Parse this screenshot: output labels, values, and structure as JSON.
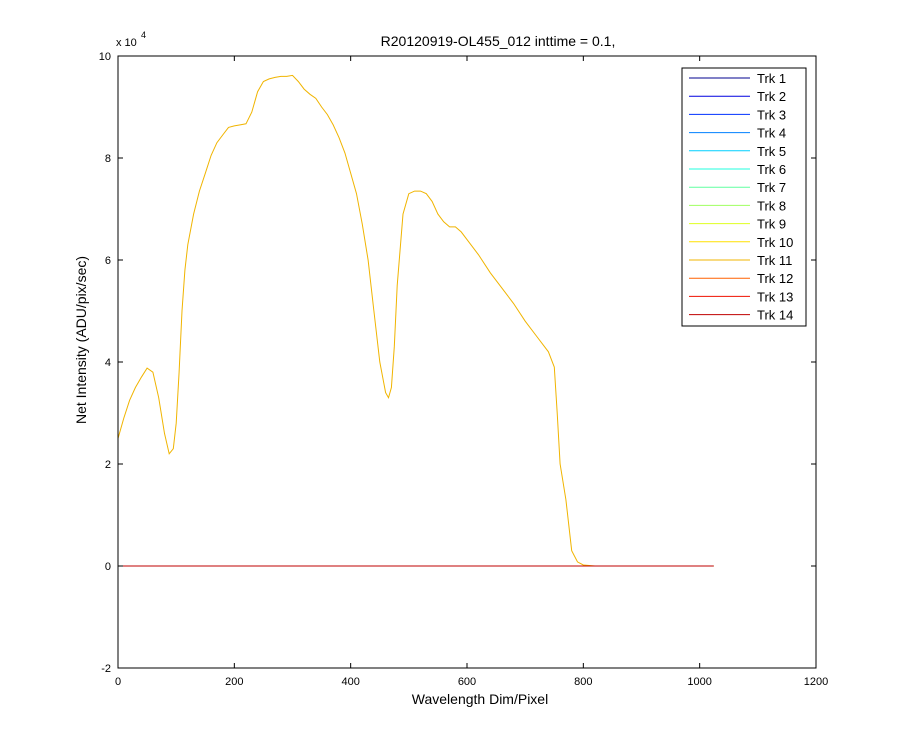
{
  "chart_data": {
    "type": "line",
    "title": "R20120919-OL455_012 inttime = 0.1,",
    "xlabel": "Wavelength Dim/Pixel",
    "ylabel": "Net Intensity (ADU/pix/sec)",
    "xlim": [
      0,
      1200
    ],
    "ylim": [
      -20000,
      100000
    ],
    "x_ticks": [
      0,
      200,
      400,
      600,
      800,
      1000,
      1200
    ],
    "x_tick_labels": [
      "0",
      "200",
      "400",
      "600",
      "800",
      "1000",
      "1200"
    ],
    "y_ticks": [
      -20000,
      0,
      20000,
      40000,
      60000,
      80000,
      100000
    ],
    "y_tick_labels": [
      "-2",
      "0",
      "2",
      "4",
      "6",
      "8",
      "10"
    ],
    "y_exponent_base": "x 10",
    "y_exponent_power": "4",
    "grid": false,
    "legend_position": "top-right",
    "series": [
      {
        "name": "Trk 1",
        "color": "#00008f",
        "x": [
          0,
          1024
        ],
        "y": [
          0,
          0
        ]
      },
      {
        "name": "Trk 2",
        "color": "#0000df",
        "x": [
          0,
          1024
        ],
        "y": [
          0,
          0
        ]
      },
      {
        "name": "Trk 3",
        "color": "#0030ff",
        "x": [
          0,
          1024
        ],
        "y": [
          0,
          0
        ]
      },
      {
        "name": "Trk 4",
        "color": "#0080ff",
        "x": [
          0,
          1024
        ],
        "y": [
          0,
          0
        ]
      },
      {
        "name": "Trk 5",
        "color": "#00cfff",
        "x": [
          0,
          1024
        ],
        "y": [
          0,
          0
        ]
      },
      {
        "name": "Trk 6",
        "color": "#20ffdf",
        "x": [
          0,
          1024
        ],
        "y": [
          0,
          0
        ]
      },
      {
        "name": "Trk 7",
        "color": "#60ffa0",
        "x": [
          0,
          1024
        ],
        "y": [
          0,
          0
        ]
      },
      {
        "name": "Trk 8",
        "color": "#9fff60",
        "x": [
          0,
          1024
        ],
        "y": [
          0,
          0
        ]
      },
      {
        "name": "Trk 9",
        "color": "#dfff20",
        "x": [
          0,
          1024
        ],
        "y": [
          0,
          0
        ]
      },
      {
        "name": "Trk 10",
        "color": "#ffe000",
        "x": [
          0,
          1024
        ],
        "y": [
          0,
          0
        ]
      },
      {
        "name": "Trk 11",
        "color": "#f0b400",
        "x": [
          0,
          10,
          20,
          30,
          40,
          50,
          60,
          70,
          80,
          88,
          95,
          100,
          105,
          110,
          115,
          120,
          130,
          140,
          150,
          160,
          170,
          180,
          190,
          200,
          210,
          220,
          230,
          240,
          250,
          260,
          270,
          280,
          290,
          300,
          310,
          320,
          330,
          340,
          350,
          360,
          370,
          380,
          390,
          400,
          410,
          420,
          430,
          440,
          450,
          460,
          465,
          470,
          475,
          480,
          490,
          500,
          510,
          520,
          530,
          540,
          550,
          560,
          570,
          580,
          590,
          600,
          620,
          640,
          660,
          680,
          700,
          720,
          740,
          750,
          755,
          760,
          770,
          780,
          790,
          800,
          820,
          850,
          900,
          950,
          1000,
          1024
        ],
        "y": [
          25000,
          29000,
          32500,
          35000,
          37000,
          38800,
          38000,
          33000,
          26000,
          22000,
          23000,
          28000,
          38000,
          50000,
          58000,
          63000,
          69000,
          73500,
          77000,
          80500,
          83000,
          84500,
          86000,
          86300,
          86500,
          86700,
          89000,
          93000,
          95000,
          95500,
          95800,
          96000,
          96000,
          96200,
          95000,
          93500,
          92500,
          91700,
          90000,
          88500,
          86500,
          84000,
          81000,
          77000,
          73000,
          67000,
          60000,
          50000,
          40000,
          34000,
          33000,
          35000,
          43000,
          55000,
          69000,
          73000,
          73500,
          73500,
          73000,
          71500,
          69000,
          67500,
          66500,
          66500,
          65500,
          64000,
          61000,
          57500,
          54500,
          51500,
          48000,
          45000,
          42000,
          39000,
          30000,
          20000,
          13000,
          3000,
          800,
          200,
          0,
          0,
          0,
          0,
          0,
          0
        ]
      },
      {
        "name": "Trk 12",
        "color": "#ff6000",
        "x": [
          0,
          1024
        ],
        "y": [
          0,
          0
        ]
      },
      {
        "name": "Trk 13",
        "color": "#ef1000",
        "x": [
          0,
          1024
        ],
        "y": [
          0,
          0
        ]
      },
      {
        "name": "Trk 14",
        "color": "#bf0000",
        "x": [
          0,
          1024
        ],
        "y": [
          0,
          0
        ]
      }
    ]
  }
}
